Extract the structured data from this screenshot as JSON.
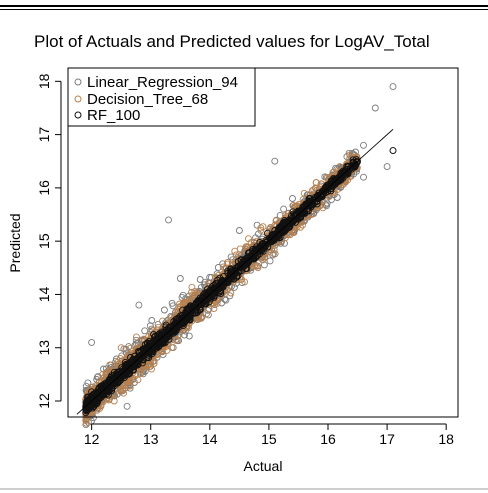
{
  "chart_data": {
    "type": "scatter",
    "title": "Plot of Actuals and Predicted values for LogAV_Total",
    "xlabel": "Actual",
    "ylabel": "Predicted",
    "xlim": [
      11.6,
      18.2
    ],
    "ylim": [
      11.7,
      18.25
    ],
    "x_ticks": [
      "12",
      "13",
      "14",
      "15",
      "16",
      "17",
      "18"
    ],
    "y_ticks": [
      "12",
      "13",
      "14",
      "15",
      "16",
      "17",
      "18"
    ],
    "legend_position": "top-left",
    "grid": false,
    "reference_line": {
      "from": [
        11.75,
        11.75
      ],
      "to": [
        17.1,
        17.1
      ]
    },
    "series": [
      {
        "name": "Linear_Regression_94",
        "color": "#7a7a7a",
        "points": [
          [
            17.1,
            17.9
          ],
          [
            16.8,
            17.5
          ],
          [
            16.4,
            16.5
          ],
          [
            15.1,
            16.5
          ],
          [
            13.3,
            15.4
          ],
          [
            16.3,
            16.4
          ],
          [
            16.5,
            16.5
          ],
          [
            17.0,
            16.4
          ],
          [
            16.6,
            16.2
          ],
          [
            12.0,
            13.1
          ],
          [
            12.8,
            13.8
          ],
          [
            13.5,
            14.3
          ],
          [
            14.5,
            15.2
          ],
          [
            15.4,
            15.8
          ],
          [
            15.8,
            16.1
          ],
          [
            12.2,
            12.6
          ],
          [
            13.9,
            14.0
          ],
          [
            14.8,
            15.3
          ],
          [
            12.6,
            11.9
          ],
          [
            16.6,
            16.8
          ],
          [
            17.1,
            16.7
          ]
        ],
        "spread": 0.33
      },
      {
        "name": "Decision_Tree_68",
        "color": "#b9804d",
        "points": [
          [
            16.2,
            16.4
          ],
          [
            16.3,
            16.35
          ],
          [
            16.1,
            16.3
          ],
          [
            14.3,
            14.6
          ],
          [
            13.2,
            13.5
          ],
          [
            15.8,
            16.1
          ],
          [
            12.5,
            13.0
          ],
          [
            13.7,
            13.9
          ]
        ],
        "spread": 0.28
      },
      {
        "name": "RF_100",
        "color": "#111111",
        "points": [
          [
            16.4,
            16.35
          ],
          [
            15.1,
            15.2
          ],
          [
            12.0,
            11.9
          ],
          [
            12.3,
            12.2
          ],
          [
            13.6,
            13.6
          ],
          [
            14.0,
            14.0
          ],
          [
            14.6,
            14.6
          ],
          [
            17.1,
            16.7
          ]
        ],
        "spread": 0.12
      }
    ]
  }
}
